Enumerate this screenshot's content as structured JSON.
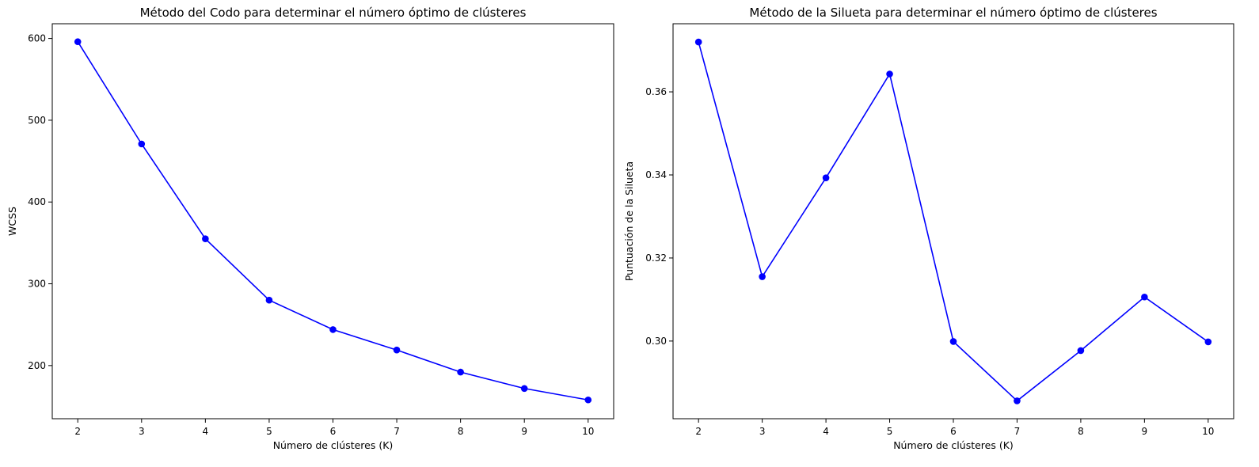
{
  "chart_data": [
    {
      "type": "line",
      "title": "Método del Codo para determinar el número óptimo de clústeres",
      "xlabel": "Número de clústeres (K)",
      "ylabel": "WCSS",
      "x": [
        2,
        3,
        4,
        5,
        6,
        7,
        8,
        9,
        10
      ],
      "series": [
        {
          "values": [
            596,
            471,
            355,
            280,
            244,
            219,
            192,
            172,
            158
          ]
        }
      ],
      "xticks": [
        2,
        3,
        4,
        5,
        6,
        7,
        8,
        9,
        10
      ],
      "yticks": [
        200,
        300,
        400,
        500,
        600
      ],
      "xlim": [
        1.6,
        10.4
      ],
      "ylim": [
        135,
        618
      ],
      "grid": false,
      "marker": "circle",
      "color": "#0000ff"
    },
    {
      "type": "line",
      "title": "Método de la Silueta para determinar el número óptimo de clústeres",
      "xlabel": "Número de clústeres (K)",
      "ylabel": "Puntuación de la Silueta",
      "x": [
        2,
        3,
        4,
        5,
        6,
        7,
        8,
        9,
        10
      ],
      "series": [
        {
          "values": [
            0.372,
            0.3155,
            0.3393,
            0.3643,
            0.2999,
            0.2856,
            0.2977,
            0.3106,
            0.2998
          ]
        }
      ],
      "xticks": [
        2,
        3,
        4,
        5,
        6,
        7,
        8,
        9,
        10
      ],
      "yticks": [
        0.3,
        0.32,
        0.34,
        0.36
      ],
      "ytick_decimals": 2,
      "xlim": [
        1.6,
        10.4
      ],
      "ylim": [
        0.2813,
        0.3764
      ],
      "grid": false,
      "marker": "circle",
      "color": "#0000ff"
    }
  ]
}
